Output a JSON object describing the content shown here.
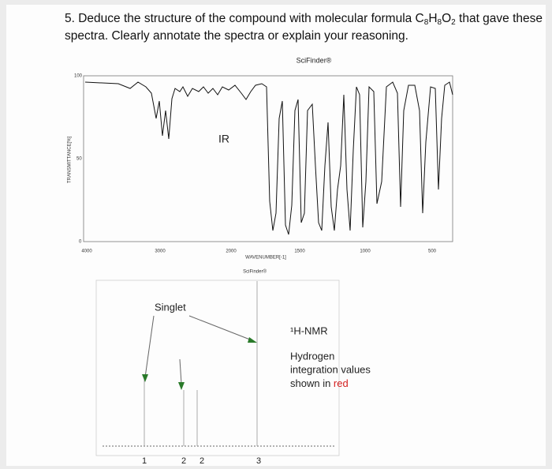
{
  "question": {
    "before": "5. Deduce the structure of the compound with molecular formula C",
    "formula": [
      "8",
      "H",
      "8",
      "O",
      "2"
    ],
    "after_line1": " that gave these",
    "line2": "spectra. Clearly annotate the spectra or explain your reasoning."
  },
  "ir": {
    "source": "SciFinder®",
    "label": "IR",
    "y_title": "TRANSMITTANCE[%]",
    "y_ticks": [
      "100",
      "50",
      "0"
    ],
    "x_ticks": [
      "4000",
      "3000",
      "2000",
      "1500",
      "1000",
      "500"
    ],
    "x_title": "WAVENUMBER[-1]"
  },
  "nmr": {
    "source": "SciFinder®",
    "callout": "Singlet",
    "label": "¹H-NMR",
    "note": [
      "Hydrogen",
      "integration values",
      "shown in "
    ],
    "note_red": "red",
    "integrations": [
      "1",
      "2",
      "2",
      "3"
    ]
  }
}
